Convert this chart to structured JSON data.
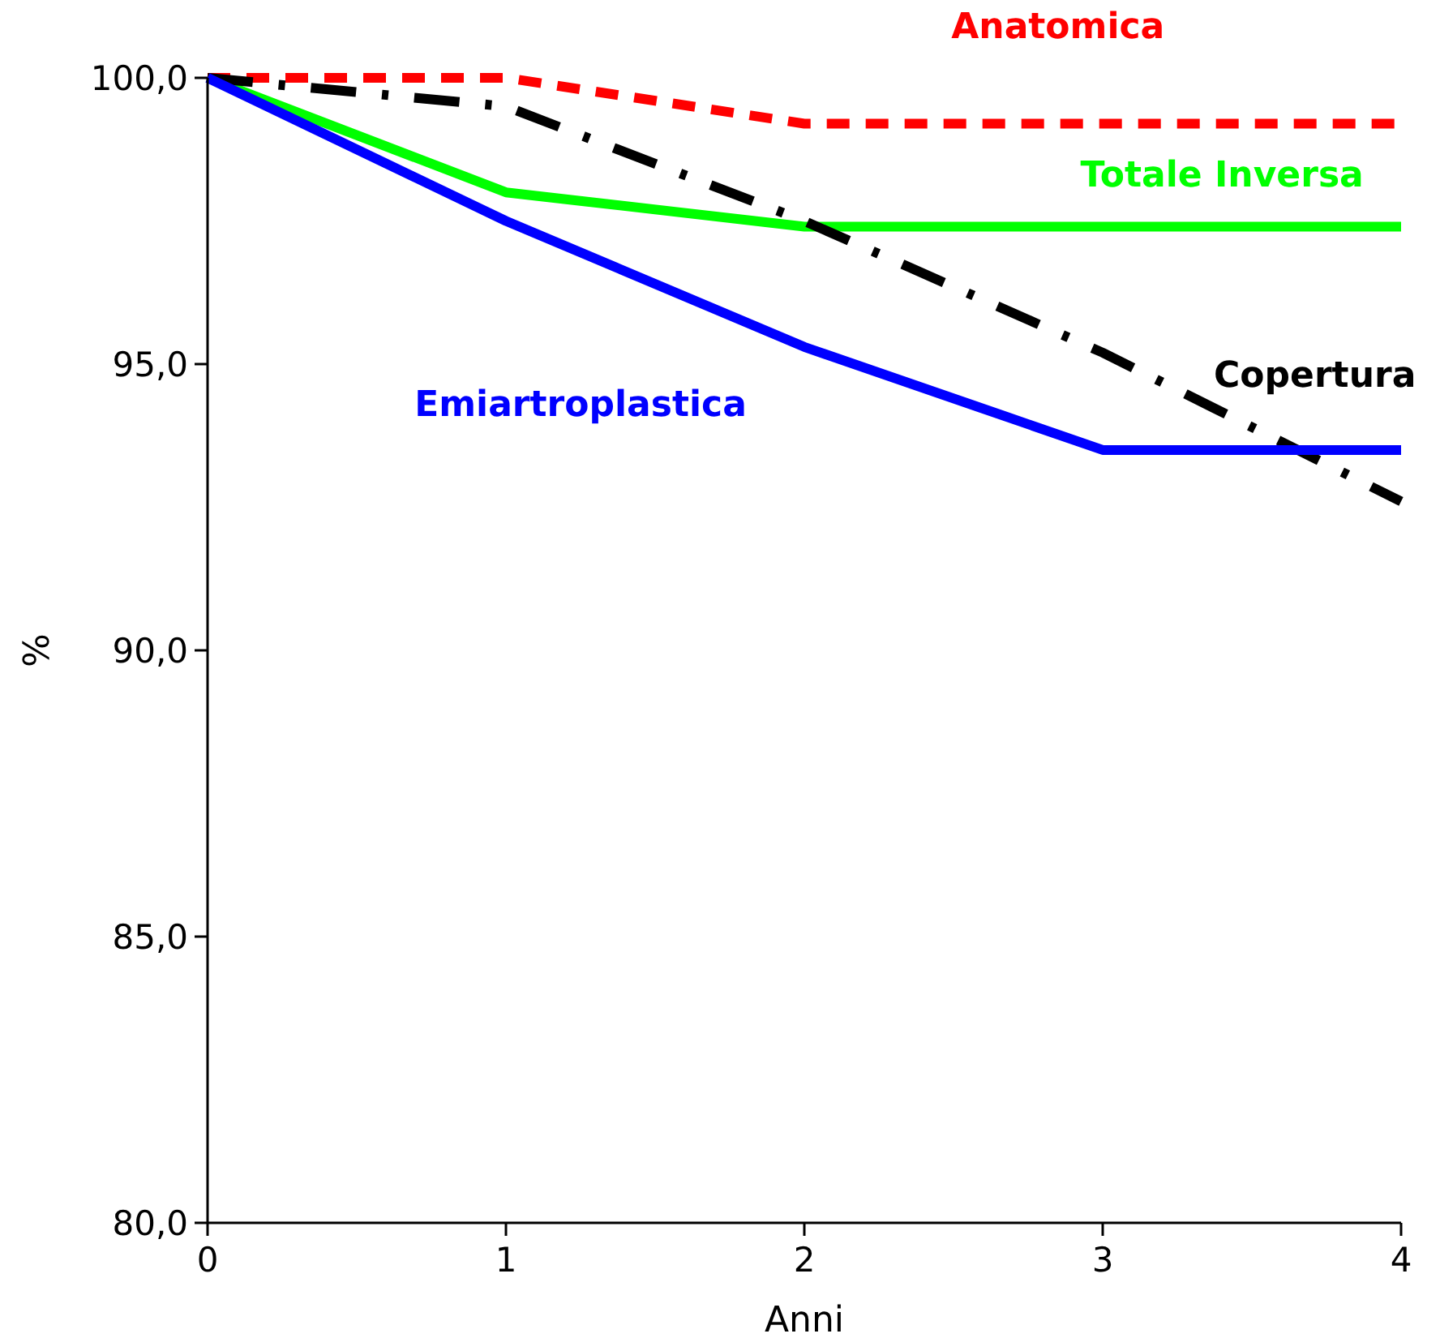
{
  "chart_data": {
    "type": "line",
    "xlabel": "Anni",
    "ylabel": "%",
    "x": [
      0,
      1,
      2,
      3,
      4
    ],
    "xlim": [
      0,
      4
    ],
    "xticks": [
      0,
      1,
      2,
      3,
      4
    ],
    "ylim": [
      80,
      100
    ],
    "yticks": [
      {
        "value": 80,
        "label": "80,0"
      },
      {
        "value": 85,
        "label": "85,0"
      },
      {
        "value": 90,
        "label": "90,0"
      },
      {
        "value": 95,
        "label": "95,0"
      },
      {
        "value": 100,
        "label": "100,0"
      }
    ],
    "grid": false,
    "legend": false,
    "marker": "none",
    "series": [
      {
        "name": "Anatomica",
        "color": "#ff0000",
        "line_style": "dashed",
        "values": [
          100,
          100,
          99.2,
          99.2,
          99.2
        ]
      },
      {
        "name": "Totale Inversa",
        "color": "#00ff00",
        "line_style": "solid",
        "values": [
          100,
          98.0,
          97.4,
          97.4,
          97.4
        ]
      },
      {
        "name": "Copertura",
        "color": "#000000",
        "line_style": "dashdot",
        "values": [
          100,
          99.5,
          97.5,
          95.2,
          92.6
        ]
      },
      {
        "name": "Emiartroplastica",
        "color": "#0000ff",
        "line_style": "solid",
        "values": [
          100,
          97.5,
          95.3,
          93.5,
          93.5
        ]
      }
    ]
  }
}
